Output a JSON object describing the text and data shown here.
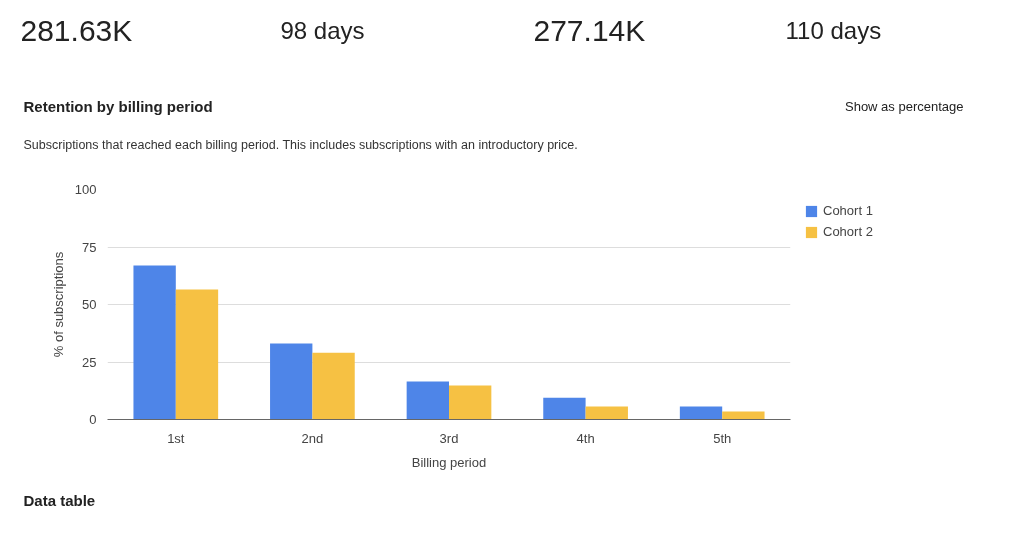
{
  "chart_data": {
    "type": "bar",
    "title": "Retention by billing period",
    "subtitle": "Subscriptions that reached each billing period. This includes subscriptions with an introductory price.",
    "xlabel": "Billing period",
    "ylabel": "% of subscriptions",
    "categories": [
      "1st",
      "2nd",
      "3rd",
      "4th",
      "5th"
    ],
    "series": [
      {
        "name": "Cohort 1",
        "color": "#4e85e8",
        "values": [
          67,
          33,
          16.5,
          9.5,
          5.7
        ]
      },
      {
        "name": "Cohort 2",
        "color": "#f6c143",
        "values": [
          56.5,
          29,
          14.8,
          5.7,
          3.5
        ]
      }
    ],
    "ylim": [
      0,
      100
    ],
    "yticks": [
      0,
      25,
      50,
      75,
      100
    ],
    "grid": "y",
    "legend": "right",
    "annotations": [
      "281.63K",
      "98 days",
      "277.14K",
      "110 days",
      "Show as percentage",
      "Data table"
    ]
  }
}
